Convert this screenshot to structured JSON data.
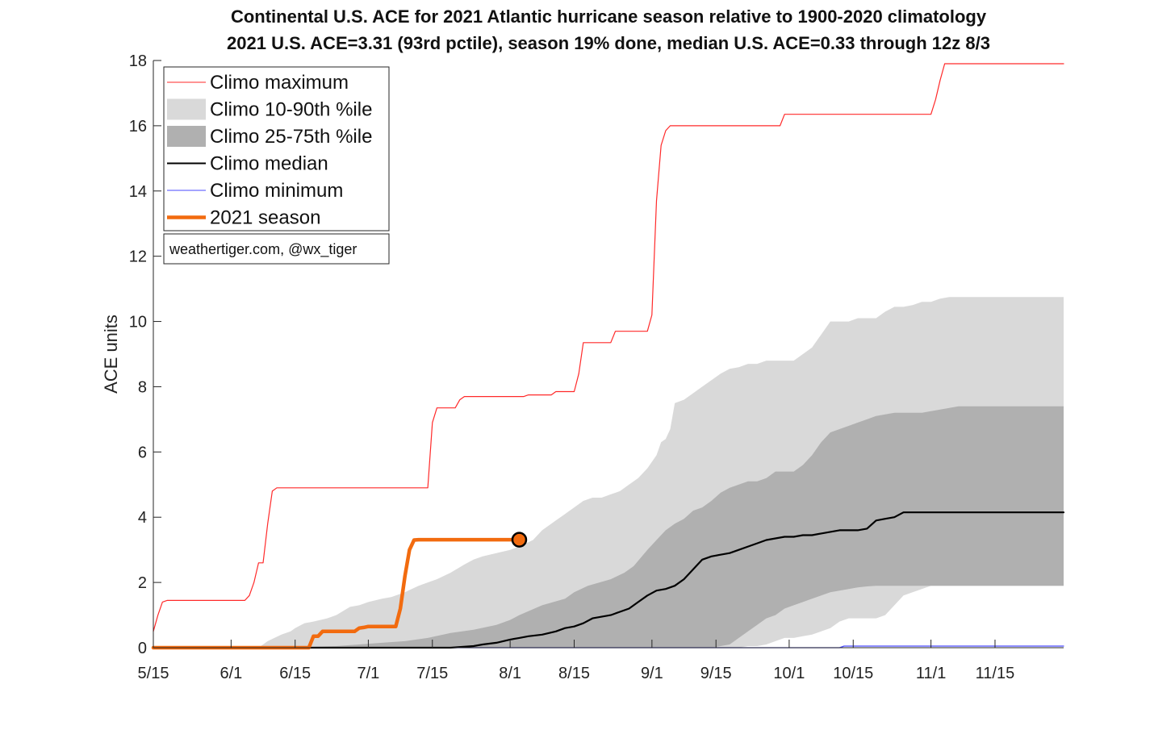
{
  "chart_data": {
    "type": "line",
    "title": "Continental U.S. ACE for 2021 Atlantic hurricane season relative to 1900-2020 climatology",
    "subtitle": "2021 U.S. ACE=3.31 (93rd pctile), season 19% done, median U.S. ACE=0.33 through 12z 8/3",
    "ylabel": "ACE units",
    "xlabel": "",
    "ylim": [
      0,
      18
    ],
    "yticks": [
      0,
      2,
      4,
      6,
      8,
      10,
      12,
      14,
      16,
      18
    ],
    "xlim_days": [
      0,
      199
    ],
    "xticks": [
      {
        "day": 0,
        "label": "5/15"
      },
      {
        "day": 17,
        "label": "6/1"
      },
      {
        "day": 31,
        "label": "6/15"
      },
      {
        "day": 47,
        "label": "7/1"
      },
      {
        "day": 61,
        "label": "7/15"
      },
      {
        "day": 78,
        "label": "8/1"
      },
      {
        "day": 92,
        "label": "8/15"
      },
      {
        "day": 109,
        "label": "9/1"
      },
      {
        "day": 123,
        "label": "9/15"
      },
      {
        "day": 139,
        "label": "10/1"
      },
      {
        "day": 153,
        "label": "10/15"
      },
      {
        "day": 170,
        "label": "11/1"
      },
      {
        "day": 184,
        "label": "11/15"
      }
    ],
    "credit": "weathertiger.com, @wx_tiger",
    "legend": [
      {
        "label": "Climo maximum",
        "type": "line",
        "color": "#ff2a2a",
        "width": 1
      },
      {
        "label": "Climo 10-90th %ile",
        "type": "patch",
        "color": "#d9d9d9"
      },
      {
        "label": "Climo 25-75th %ile",
        "type": "patch",
        "color": "#b0b0b0"
      },
      {
        "label": "Climo median",
        "type": "line",
        "color": "#000000",
        "width": 2
      },
      {
        "label": "Climo minimum",
        "type": "line",
        "color": "#4a4aff",
        "width": 1
      },
      {
        "label": "2021 season",
        "type": "line",
        "color": "#f26b0f",
        "width": 4.5
      }
    ],
    "series": [
      {
        "name": "Climo maximum",
        "color": "#ff2a2a",
        "x": [
          0,
          1,
          2,
          3,
          20,
          21,
          22,
          23,
          24,
          25,
          26,
          27,
          28,
          29,
          30,
          44,
          45,
          46,
          47,
          48,
          50,
          60,
          61,
          62,
          63,
          66,
          67,
          68,
          69,
          70,
          80,
          81,
          82,
          83,
          84,
          87,
          88,
          90,
          91,
          92,
          93,
          94,
          98,
          99,
          100,
          101,
          102,
          103,
          106,
          107,
          108,
          109,
          110,
          111,
          112,
          113,
          114,
          115,
          116,
          117,
          118,
          119,
          120,
          125,
          130,
          135,
          137,
          138,
          139,
          140,
          155,
          160,
          165,
          170,
          171,
          172,
          173,
          174,
          175,
          199
        ],
        "y": [
          0.5,
          1.0,
          1.4,
          1.45,
          1.45,
          1.6,
          2.0,
          2.6,
          2.6,
          3.8,
          4.8,
          4.9,
          4.9,
          4.9,
          4.9,
          4.9,
          4.9,
          4.9,
          4.9,
          4.9,
          4.9,
          4.9,
          6.9,
          7.35,
          7.35,
          7.35,
          7.6,
          7.7,
          7.7,
          7.7,
          7.7,
          7.7,
          7.75,
          7.75,
          7.75,
          7.75,
          7.85,
          7.85,
          7.85,
          7.85,
          8.4,
          9.35,
          9.35,
          9.35,
          9.35,
          9.7,
          9.7,
          9.7,
          9.7,
          9.7,
          9.7,
          10.2,
          13.7,
          15.4,
          15.85,
          16.0,
          16.0,
          16.0,
          16.0,
          16.0,
          16.0,
          16.0,
          16.0,
          16.0,
          16.0,
          16.0,
          16.0,
          16.35,
          16.35,
          16.35,
          16.35,
          16.35,
          16.35,
          16.35,
          16.8,
          17.4,
          17.9,
          17.9,
          17.9,
          17.9
        ]
      },
      {
        "name": "Climo 10-90th %ile",
        "color": "#d9d9d9",
        "x": [
          0,
          23,
          24,
          25,
          28,
          30,
          31,
          33,
          35,
          38,
          40,
          43,
          45,
          47,
          50,
          52,
          55,
          58,
          60,
          62,
          65,
          68,
          70,
          72,
          75,
          78,
          80,
          83,
          85,
          88,
          90,
          92,
          94,
          96,
          98,
          100,
          102,
          104,
          106,
          108,
          110,
          111,
          112,
          113,
          114,
          116,
          118,
          120,
          122,
          124,
          126,
          128,
          130,
          132,
          134,
          136,
          138,
          140,
          142,
          144,
          146,
          148,
          150,
          152,
          154,
          156,
          158,
          160,
          162,
          164,
          166,
          168,
          170,
          172,
          174,
          176,
          178,
          180,
          182,
          184,
          186,
          188,
          190,
          192,
          199
        ],
        "lower": [
          0,
          0,
          0,
          0,
          0,
          0,
          0,
          0,
          0,
          0,
          0,
          0,
          0,
          0,
          0,
          0,
          0,
          0,
          0,
          0,
          0,
          0,
          0,
          0,
          0,
          0,
          0,
          0,
          0,
          0,
          0,
          0,
          0,
          0,
          0,
          0,
          0,
          0,
          0,
          0,
          0,
          0,
          0,
          0,
          0,
          0,
          0,
          0,
          0,
          0,
          0,
          0,
          0.05,
          0.05,
          0.1,
          0.2,
          0.3,
          0.3,
          0.35,
          0.4,
          0.5,
          0.6,
          0.8,
          0.9,
          0.9,
          0.9,
          0.9,
          1.0,
          1.3,
          1.6,
          1.7,
          1.8,
          1.9,
          1.9,
          1.9,
          1.9,
          1.9,
          1.9,
          1.9,
          1.9,
          1.9,
          1.9,
          1.9,
          1.9,
          1.9
        ],
        "upper": [
          0,
          0,
          0.1,
          0.2,
          0.4,
          0.5,
          0.6,
          0.75,
          0.8,
          0.9,
          1.0,
          1.25,
          1.3,
          1.4,
          1.5,
          1.55,
          1.7,
          1.9,
          2.0,
          2.1,
          2.3,
          2.55,
          2.7,
          2.8,
          2.9,
          3.0,
          3.1,
          3.3,
          3.6,
          3.9,
          4.1,
          4.3,
          4.5,
          4.6,
          4.6,
          4.7,
          4.8,
          5.0,
          5.2,
          5.5,
          5.9,
          6.3,
          6.4,
          6.7,
          7.5,
          7.6,
          7.8,
          8.0,
          8.2,
          8.4,
          8.55,
          8.6,
          8.7,
          8.7,
          8.8,
          8.8,
          8.8,
          8.8,
          9.0,
          9.2,
          9.6,
          10.0,
          10.0,
          10.0,
          10.1,
          10.1,
          10.1,
          10.3,
          10.45,
          10.45,
          10.5,
          10.6,
          10.6,
          10.7,
          10.75,
          10.75,
          10.75,
          10.75,
          10.75,
          10.75,
          10.75,
          10.75,
          10.75,
          10.75,
          10.75
        ]
      },
      {
        "name": "Climo 25-75th %ile",
        "color": "#b0b0b0",
        "x": [
          0,
          35,
          40,
          45,
          50,
          55,
          60,
          65,
          70,
          75,
          78,
          80,
          85,
          90,
          92,
          95,
          100,
          103,
          105,
          108,
          110,
          112,
          114,
          116,
          118,
          120,
          122,
          124,
          126,
          128,
          130,
          132,
          134,
          136,
          138,
          140,
          142,
          144,
          146,
          148,
          150,
          152,
          154,
          156,
          158,
          160,
          162,
          164,
          166,
          168,
          170,
          172,
          174,
          176,
          178,
          180,
          199
        ],
        "lower": [
          0,
          0,
          0,
          0,
          0,
          0,
          0,
          0,
          0,
          0,
          0,
          0,
          0,
          0,
          0,
          0,
          0,
          0,
          0,
          0,
          0,
          0,
          0,
          0,
          0,
          0,
          0,
          0.05,
          0.1,
          0.3,
          0.5,
          0.7,
          0.9,
          1.0,
          1.2,
          1.3,
          1.4,
          1.5,
          1.6,
          1.7,
          1.75,
          1.8,
          1.85,
          1.88,
          1.9,
          1.9,
          1.9,
          1.9,
          1.9,
          1.9,
          1.9,
          1.9,
          1.9,
          1.9,
          1.9,
          1.9,
          1.9
        ],
        "upper": [
          0,
          0.03,
          0.05,
          0.1,
          0.15,
          0.2,
          0.3,
          0.45,
          0.55,
          0.7,
          0.85,
          1.0,
          1.3,
          1.5,
          1.7,
          1.9,
          2.1,
          2.3,
          2.5,
          3.0,
          3.3,
          3.6,
          3.8,
          3.95,
          4.2,
          4.3,
          4.5,
          4.75,
          4.9,
          5.0,
          5.1,
          5.1,
          5.2,
          5.4,
          5.4,
          5.4,
          5.6,
          5.9,
          6.3,
          6.6,
          6.7,
          6.8,
          6.9,
          7.0,
          7.1,
          7.15,
          7.2,
          7.2,
          7.2,
          7.2,
          7.25,
          7.3,
          7.35,
          7.4,
          7.4,
          7.4,
          7.4
        ]
      },
      {
        "name": "Climo median",
        "color": "#000000",
        "x": [
          0,
          60,
          65,
          70,
          72,
          75,
          78,
          80,
          82,
          85,
          88,
          90,
          92,
          94,
          96,
          98,
          100,
          102,
          104,
          106,
          108,
          110,
          112,
          114,
          116,
          118,
          120,
          122,
          124,
          126,
          128,
          130,
          132,
          134,
          136,
          138,
          140,
          142,
          144,
          146,
          148,
          150,
          152,
          154,
          156,
          158,
          160,
          162,
          164,
          199
        ],
        "y": [
          0,
          0,
          0,
          0.05,
          0.1,
          0.15,
          0.25,
          0.3,
          0.35,
          0.4,
          0.5,
          0.6,
          0.65,
          0.75,
          0.9,
          0.95,
          1.0,
          1.1,
          1.2,
          1.4,
          1.6,
          1.75,
          1.8,
          1.9,
          2.1,
          2.4,
          2.7,
          2.8,
          2.85,
          2.9,
          3.0,
          3.1,
          3.2,
          3.3,
          3.35,
          3.4,
          3.4,
          3.45,
          3.45,
          3.5,
          3.55,
          3.6,
          3.6,
          3.6,
          3.65,
          3.9,
          3.95,
          4.0,
          4.15,
          4.15
        ]
      },
      {
        "name": "Climo minimum",
        "color": "#4a4aff",
        "x": [
          0,
          150,
          151,
          199
        ],
        "y": [
          0,
          0,
          0.05,
          0.05
        ]
      },
      {
        "name": "2021 season",
        "color": "#f26b0f",
        "x": [
          0,
          34,
          35,
          36,
          37,
          38,
          39,
          40,
          41,
          42,
          43,
          44,
          45,
          46,
          47,
          48,
          49,
          50,
          51,
          52,
          53,
          54,
          55,
          56,
          57,
          58,
          59,
          60,
          61,
          62,
          63,
          64,
          65,
          66,
          67,
          68,
          69,
          70,
          71,
          72,
          73,
          74,
          75,
          76,
          77,
          78,
          79,
          80
        ],
        "y": [
          0,
          0,
          0.35,
          0.35,
          0.5,
          0.5,
          0.5,
          0.5,
          0.5,
          0.5,
          0.5,
          0.5,
          0.6,
          0.62,
          0.65,
          0.65,
          0.65,
          0.65,
          0.65,
          0.65,
          0.65,
          1.2,
          2.2,
          3.0,
          3.3,
          3.31,
          3.31,
          3.31,
          3.31,
          3.31,
          3.31,
          3.31,
          3.31,
          3.31,
          3.31,
          3.31,
          3.31,
          3.31,
          3.31,
          3.31,
          3.31,
          3.31,
          3.31,
          3.31,
          3.31,
          3.31,
          3.31,
          3.31
        ]
      }
    ],
    "current_point": {
      "x": 80,
      "y": 3.31,
      "series": "2021 season"
    },
    "grid": false,
    "legend_placement": "top-left"
  }
}
